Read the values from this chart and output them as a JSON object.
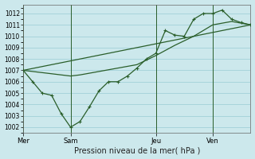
{
  "xlabel": "Pression niveau de la mer( hPa )",
  "background_color": "#cce8ec",
  "grid_color": "#99ccd4",
  "line_color": "#2a5e2a",
  "ylim": [
    1001.5,
    1012.8
  ],
  "xlim": [
    0,
    24
  ],
  "yticks": [
    1002,
    1003,
    1004,
    1005,
    1006,
    1007,
    1008,
    1009,
    1010,
    1011,
    1012
  ],
  "day_labels": [
    "Mer",
    "Sam",
    "Jeu",
    "Ven"
  ],
  "day_positions": [
    0,
    5,
    14,
    20
  ],
  "series_smooth_x": [
    0,
    2,
    4,
    5,
    6,
    8,
    10,
    12,
    14,
    16,
    18,
    20,
    22,
    24
  ],
  "series_smooth_y": [
    1007.0,
    1006.8,
    1006.6,
    1006.5,
    1006.6,
    1006.9,
    1007.2,
    1007.5,
    1008.3,
    1009.2,
    1010.0,
    1011.0,
    1011.3,
    1011.0
  ],
  "series_jagged_x": [
    0,
    1,
    2,
    3,
    4,
    5,
    6,
    7,
    8,
    9,
    10,
    11,
    12,
    13,
    14,
    15,
    16,
    17,
    18,
    19,
    20,
    21,
    22,
    23,
    24
  ],
  "series_jagged_y": [
    1007.0,
    1006.0,
    1005.0,
    1004.8,
    1003.2,
    1002.0,
    1002.5,
    1003.8,
    1005.2,
    1006.0,
    1006.0,
    1006.5,
    1007.2,
    1008.0,
    1008.5,
    1010.5,
    1010.1,
    1010.0,
    1011.5,
    1012.0,
    1012.0,
    1012.3,
    1011.5,
    1011.2,
    1011.0
  ],
  "series_trend_x": [
    0,
    24
  ],
  "series_trend_y": [
    1007.0,
    1011.0
  ]
}
